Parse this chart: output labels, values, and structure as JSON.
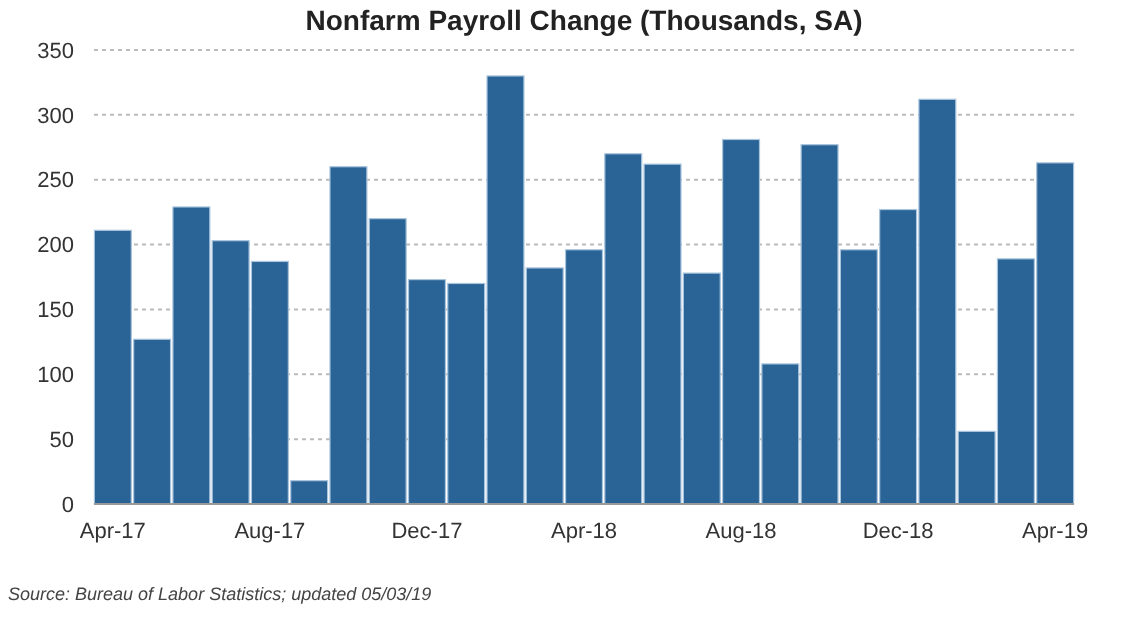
{
  "chart_data": {
    "type": "bar",
    "title": "Nonfarm Payroll Change (Thousands, SA)",
    "categories": [
      "Apr-17",
      null,
      null,
      null,
      "Aug-17",
      null,
      null,
      null,
      "Dec-17",
      null,
      null,
      null,
      "Apr-18",
      null,
      null,
      null,
      "Aug-18",
      null,
      null,
      null,
      "Dec-18",
      null,
      null,
      null,
      "Apr-19"
    ],
    "values": [
      211,
      127,
      229,
      203,
      187,
      18,
      260,
      220,
      173,
      170,
      330,
      182,
      196,
      270,
      262,
      178,
      281,
      108,
      277,
      196,
      227,
      312,
      56,
      189,
      263
    ],
    "color": "#2a6496",
    "ylim": [
      0,
      350
    ],
    "yticks": [
      0,
      50,
      100,
      150,
      200,
      250,
      300,
      350
    ],
    "grid": "y",
    "annotations": [
      "Source: Bureau of Labor Statistics; updated 05/03/19"
    ]
  }
}
